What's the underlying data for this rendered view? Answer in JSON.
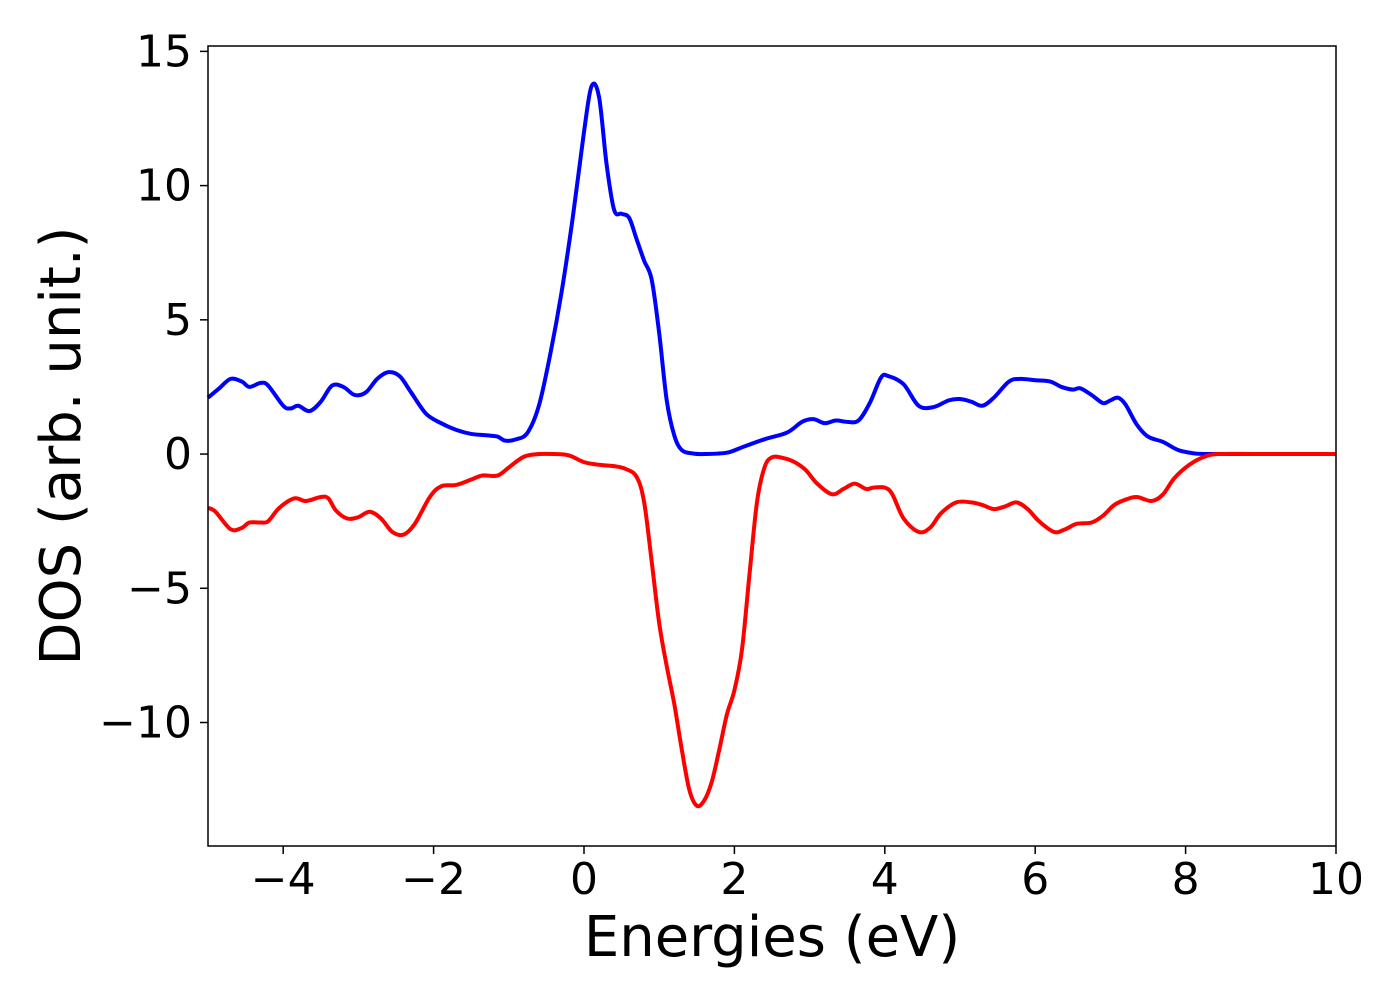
{
  "chart_data": {
    "type": "line",
    "title": "",
    "xlabel": "Energies (eV)",
    "ylabel": "DOS (arb. unit.)",
    "xlim": [
      -5,
      10
    ],
    "ylim": [
      -14.6,
      15.2
    ],
    "xticks": [
      -4,
      -2,
      0,
      2,
      4,
      6,
      8,
      10
    ],
    "xtick_labels": [
      "−4",
      "−2",
      "0",
      "2",
      "4",
      "6",
      "8",
      "10"
    ],
    "yticks": [
      -10,
      -5,
      0,
      5,
      10,
      15
    ],
    "ytick_labels": [
      "−10",
      "−5",
      "0",
      "5",
      "10",
      "15"
    ],
    "grid": false,
    "legend": "none",
    "series": [
      {
        "color": "#0000ff",
        "points": [
          [
            -5.0,
            2.1
          ],
          [
            -4.85,
            2.45
          ],
          [
            -4.7,
            2.8
          ],
          [
            -4.55,
            2.7
          ],
          [
            -4.45,
            2.5
          ],
          [
            -4.3,
            2.65
          ],
          [
            -4.2,
            2.55
          ],
          [
            -4.0,
            1.8
          ],
          [
            -3.9,
            1.7
          ],
          [
            -3.8,
            1.8
          ],
          [
            -3.65,
            1.6
          ],
          [
            -3.5,
            1.95
          ],
          [
            -3.35,
            2.55
          ],
          [
            -3.2,
            2.5
          ],
          [
            -3.05,
            2.2
          ],
          [
            -2.9,
            2.3
          ],
          [
            -2.75,
            2.8
          ],
          [
            -2.6,
            3.05
          ],
          [
            -2.45,
            2.9
          ],
          [
            -2.3,
            2.3
          ],
          [
            -2.1,
            1.5
          ],
          [
            -1.9,
            1.15
          ],
          [
            -1.7,
            0.9
          ],
          [
            -1.5,
            0.75
          ],
          [
            -1.3,
            0.7
          ],
          [
            -1.15,
            0.65
          ],
          [
            -1.05,
            0.5
          ],
          [
            -0.9,
            0.55
          ],
          [
            -0.75,
            0.8
          ],
          [
            -0.6,
            1.8
          ],
          [
            -0.45,
            3.7
          ],
          [
            -0.3,
            6.0
          ],
          [
            -0.15,
            8.8
          ],
          [
            0.0,
            12.0
          ],
          [
            0.1,
            13.7
          ],
          [
            0.2,
            13.3
          ],
          [
            0.3,
            10.8
          ],
          [
            0.4,
            9.1
          ],
          [
            0.5,
            8.95
          ],
          [
            0.6,
            8.8
          ],
          [
            0.7,
            8.0
          ],
          [
            0.8,
            7.2
          ],
          [
            0.9,
            6.5
          ],
          [
            1.0,
            4.5
          ],
          [
            1.1,
            2.0
          ],
          [
            1.2,
            0.7
          ],
          [
            1.3,
            0.15
          ],
          [
            1.45,
            0.02
          ],
          [
            1.6,
            0.0
          ],
          [
            1.9,
            0.05
          ],
          [
            2.1,
            0.25
          ],
          [
            2.4,
            0.55
          ],
          [
            2.7,
            0.8
          ],
          [
            2.9,
            1.2
          ],
          [
            3.05,
            1.3
          ],
          [
            3.2,
            1.15
          ],
          [
            3.35,
            1.25
          ],
          [
            3.5,
            1.2
          ],
          [
            3.65,
            1.25
          ],
          [
            3.8,
            1.9
          ],
          [
            3.95,
            2.85
          ],
          [
            4.05,
            2.9
          ],
          [
            4.25,
            2.6
          ],
          [
            4.45,
            1.8
          ],
          [
            4.65,
            1.75
          ],
          [
            4.85,
            2.0
          ],
          [
            5.0,
            2.05
          ],
          [
            5.15,
            1.95
          ],
          [
            5.3,
            1.8
          ],
          [
            5.45,
            2.1
          ],
          [
            5.65,
            2.7
          ],
          [
            5.8,
            2.8
          ],
          [
            6.0,
            2.75
          ],
          [
            6.2,
            2.7
          ],
          [
            6.35,
            2.5
          ],
          [
            6.5,
            2.4
          ],
          [
            6.6,
            2.45
          ],
          [
            6.75,
            2.2
          ],
          [
            6.9,
            1.9
          ],
          [
            7.0,
            2.0
          ],
          [
            7.1,
            2.1
          ],
          [
            7.2,
            1.85
          ],
          [
            7.35,
            1.1
          ],
          [
            7.5,
            0.65
          ],
          [
            7.7,
            0.45
          ],
          [
            7.9,
            0.15
          ],
          [
            8.1,
            0.03
          ],
          [
            8.3,
            0.0
          ],
          [
            9.0,
            0.0
          ],
          [
            10.0,
            0.0
          ]
        ]
      },
      {
        "color": "#ff0000",
        "points": [
          [
            -5.0,
            -2.0
          ],
          [
            -4.9,
            -2.15
          ],
          [
            -4.7,
            -2.8
          ],
          [
            -4.55,
            -2.75
          ],
          [
            -4.45,
            -2.55
          ],
          [
            -4.3,
            -2.55
          ],
          [
            -4.2,
            -2.5
          ],
          [
            -4.05,
            -2.0
          ],
          [
            -3.85,
            -1.65
          ],
          [
            -3.7,
            -1.75
          ],
          [
            -3.5,
            -1.6
          ],
          [
            -3.4,
            -1.65
          ],
          [
            -3.3,
            -2.1
          ],
          [
            -3.15,
            -2.4
          ],
          [
            -3.0,
            -2.35
          ],
          [
            -2.85,
            -2.15
          ],
          [
            -2.7,
            -2.4
          ],
          [
            -2.55,
            -2.9
          ],
          [
            -2.4,
            -3.0
          ],
          [
            -2.25,
            -2.6
          ],
          [
            -2.05,
            -1.6
          ],
          [
            -1.9,
            -1.2
          ],
          [
            -1.7,
            -1.15
          ],
          [
            -1.5,
            -0.95
          ],
          [
            -1.35,
            -0.8
          ],
          [
            -1.15,
            -0.8
          ],
          [
            -1.0,
            -0.5
          ],
          [
            -0.8,
            -0.1
          ],
          [
            -0.6,
            0.0
          ],
          [
            -0.4,
            0.0
          ],
          [
            -0.2,
            -0.05
          ],
          [
            0.0,
            -0.3
          ],
          [
            0.2,
            -0.4
          ],
          [
            0.4,
            -0.45
          ],
          [
            0.55,
            -0.55
          ],
          [
            0.7,
            -0.85
          ],
          [
            0.8,
            -1.8
          ],
          [
            0.9,
            -4.0
          ],
          [
            1.0,
            -6.3
          ],
          [
            1.1,
            -7.9
          ],
          [
            1.2,
            -9.3
          ],
          [
            1.3,
            -11.0
          ],
          [
            1.4,
            -12.5
          ],
          [
            1.5,
            -13.1
          ],
          [
            1.6,
            -12.9
          ],
          [
            1.7,
            -12.2
          ],
          [
            1.8,
            -11.0
          ],
          [
            1.9,
            -9.7
          ],
          [
            2.0,
            -8.8
          ],
          [
            2.1,
            -7.3
          ],
          [
            2.2,
            -4.5
          ],
          [
            2.3,
            -1.8
          ],
          [
            2.4,
            -0.5
          ],
          [
            2.5,
            -0.12
          ],
          [
            2.65,
            -0.15
          ],
          [
            2.8,
            -0.3
          ],
          [
            2.95,
            -0.6
          ],
          [
            3.1,
            -1.1
          ],
          [
            3.3,
            -1.5
          ],
          [
            3.45,
            -1.3
          ],
          [
            3.6,
            -1.1
          ],
          [
            3.75,
            -1.3
          ],
          [
            3.85,
            -1.25
          ],
          [
            4.0,
            -1.25
          ],
          [
            4.1,
            -1.5
          ],
          [
            4.25,
            -2.4
          ],
          [
            4.45,
            -2.9
          ],
          [
            4.6,
            -2.75
          ],
          [
            4.75,
            -2.2
          ],
          [
            4.95,
            -1.8
          ],
          [
            5.15,
            -1.8
          ],
          [
            5.3,
            -1.9
          ],
          [
            5.45,
            -2.05
          ],
          [
            5.6,
            -1.95
          ],
          [
            5.75,
            -1.8
          ],
          [
            5.9,
            -2.05
          ],
          [
            6.05,
            -2.5
          ],
          [
            6.25,
            -2.9
          ],
          [
            6.4,
            -2.8
          ],
          [
            6.55,
            -2.6
          ],
          [
            6.75,
            -2.55
          ],
          [
            6.9,
            -2.3
          ],
          [
            7.05,
            -1.9
          ],
          [
            7.2,
            -1.7
          ],
          [
            7.35,
            -1.6
          ],
          [
            7.55,
            -1.75
          ],
          [
            7.7,
            -1.5
          ],
          [
            7.85,
            -0.9
          ],
          [
            8.05,
            -0.4
          ],
          [
            8.25,
            -0.1
          ],
          [
            8.45,
            0.0
          ],
          [
            9.0,
            0.0
          ],
          [
            10.0,
            0.0
          ]
        ]
      }
    ]
  }
}
